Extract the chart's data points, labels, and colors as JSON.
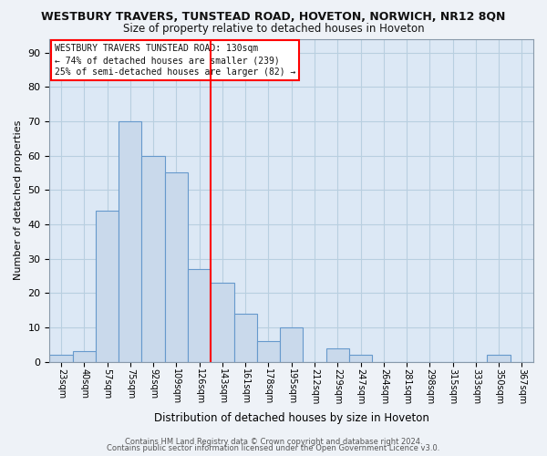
{
  "title1": "WESTBURY TRAVERS, TUNSTEAD ROAD, HOVETON, NORWICH, NR12 8QN",
  "title2": "Size of property relative to detached houses in Hoveton",
  "xlabel": "Distribution of detached houses by size in Hoveton",
  "ylabel": "Number of detached properties",
  "bar_labels": [
    "23sqm",
    "40sqm",
    "57sqm",
    "75sqm",
    "92sqm",
    "109sqm",
    "126sqm",
    "143sqm",
    "161sqm",
    "178sqm",
    "195sqm",
    "212sqm",
    "229sqm",
    "247sqm",
    "264sqm",
    "281sqm",
    "298sqm",
    "315sqm",
    "333sqm",
    "350sqm",
    "367sqm"
  ],
  "bar_values": [
    2,
    3,
    44,
    70,
    60,
    55,
    27,
    23,
    14,
    6,
    10,
    0,
    4,
    2,
    0,
    0,
    0,
    0,
    0,
    2,
    0
  ],
  "bar_color": "#c9d9eb",
  "bar_edge_color": "#6699cc",
  "ylim": [
    0,
    94
  ],
  "yticks": [
    0,
    10,
    20,
    30,
    40,
    50,
    60,
    70,
    80,
    90
  ],
  "red_line_index": 6,
  "legend_text1": "WESTBURY TRAVERS TUNSTEAD ROAD: 130sqm",
  "legend_text2": "← 74% of detached houses are smaller (239)",
  "legend_text3": "25% of semi-detached houses are larger (82) →",
  "footer1": "Contains HM Land Registry data © Crown copyright and database right 2024.",
  "footer2": "Contains public sector information licensed under the Open Government Licence v3.0.",
  "bg_color": "#eef2f7",
  "plot_bg_color": "#dce8f5",
  "grid_color": "#b8cfe0"
}
